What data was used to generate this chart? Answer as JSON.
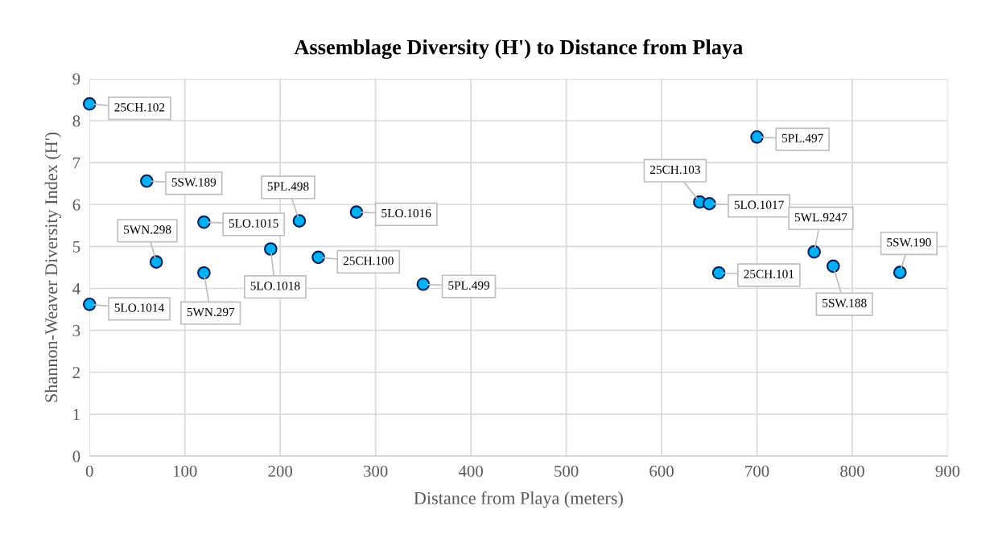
{
  "chart_data": {
    "type": "scatter",
    "title": "Assemblage Diversity (H') to Distance from Playa",
    "xlabel": "Distance from Playa (meters)",
    "ylabel": "Shannon-Weaver Diversity Index (H')",
    "x": [
      0,
      60,
      70,
      120,
      120,
      190,
      220,
      240,
      0,
      280,
      350,
      700,
      640,
      650,
      760,
      780,
      660,
      850
    ],
    "series": [
      {
        "color": "#00b0f0",
        "values": [
          8.4,
          6.56,
          4.63,
          5.58,
          4.37,
          4.94,
          5.61,
          4.74,
          3.62,
          5.82,
          4.1,
          7.61,
          6.06,
          6.02,
          4.87,
          4.53,
          4.37,
          4.38
        ]
      }
    ],
    "annotations": [
      {
        "text": "25CH.102",
        "x": 0,
        "y": 8.4
      },
      {
        "text": "5SW.189",
        "x": 60,
        "y": 6.56
      },
      {
        "text": "5WN.298",
        "x": 70,
        "y": 4.63
      },
      {
        "text": "5LO.1015",
        "x": 120,
        "y": 5.58
      },
      {
        "text": "5WN.297",
        "x": 120,
        "y": 4.37
      },
      {
        "text": "5LO.1018",
        "x": 190,
        "y": 4.94
      },
      {
        "text": "5PL.498",
        "x": 220,
        "y": 5.61
      },
      {
        "text": "25CH.100",
        "x": 240,
        "y": 4.74
      },
      {
        "text": "5LO.1014",
        "x": 0,
        "y": 3.62
      },
      {
        "text": "5LO.1016",
        "x": 280,
        "y": 5.82
      },
      {
        "text": "5PL.499",
        "x": 350,
        "y": 4.1
      },
      {
        "text": "5PL.497",
        "x": 700,
        "y": 7.61
      },
      {
        "text": "25CH.103",
        "x": 640,
        "y": 6.06
      },
      {
        "text": "5LO.1017",
        "x": 650,
        "y": 6.02
      },
      {
        "text": "5WL.9247",
        "x": 760,
        "y": 4.87
      },
      {
        "text": "5SW.188",
        "x": 780,
        "y": 4.53
      },
      {
        "text": "25CH.101",
        "x": 660,
        "y": 4.37
      },
      {
        "text": "5SW.190",
        "x": 850,
        "y": 4.38
      }
    ],
    "xlim": [
      0,
      900
    ],
    "xticks": [
      0,
      100,
      200,
      300,
      400,
      500,
      600,
      700,
      800,
      900
    ],
    "ylim": [
      0,
      9
    ],
    "yticks": [
      0,
      1,
      2,
      3,
      4,
      5,
      6,
      7,
      8,
      9
    ],
    "grid": true,
    "marker": "circle",
    "legend": false
  }
}
